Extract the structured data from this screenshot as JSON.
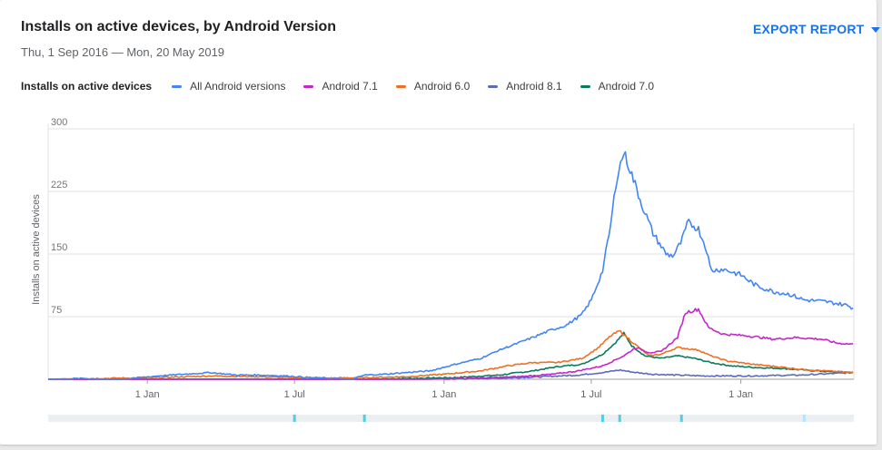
{
  "header": {
    "title": "Installs on active devices, by Android Version",
    "date_range": "Thu, 1 Sep 2016 — Mon, 20 May 2019",
    "export_label": "EXPORT REPORT"
  },
  "legend": {
    "title": "Installs on active devices"
  },
  "chart_data": {
    "type": "line",
    "ylabel": "Installs on active devices",
    "xlabel": "",
    "ylim": [
      0,
      300
    ],
    "y_ticks": [
      "300",
      "225",
      "150",
      "75"
    ],
    "y_tick_values": [
      300,
      225,
      150,
      75
    ],
    "x_ticks": [
      {
        "label": "1 Jan",
        "date": "2017-01-01"
      },
      {
        "label": "1 Jul",
        "date": "2017-07-01"
      },
      {
        "label": "1 Jan",
        "date": "2018-01-01"
      },
      {
        "label": "1 Jul",
        "date": "2018-07-01"
      },
      {
        "label": "1 Jan",
        "date": "2019-01-01"
      }
    ],
    "x_range": [
      "2016-09-01",
      "2019-05-20"
    ],
    "grid": true,
    "legend_position": "top",
    "series": [
      {
        "name": "All Android versions",
        "color": "#4285f4",
        "points": [
          [
            "2016-09-01",
            0
          ],
          [
            "2016-10-15",
            1
          ],
          [
            "2016-11-15",
            0
          ],
          [
            "2016-12-01",
            0
          ],
          [
            "2017-01-15",
            4
          ],
          [
            "2017-02-15",
            6
          ],
          [
            "2017-03-20",
            8
          ],
          [
            "2017-04-20",
            5
          ],
          [
            "2017-05-20",
            5
          ],
          [
            "2017-06-20",
            4
          ],
          [
            "2017-07-20",
            2
          ],
          [
            "2017-08-15",
            1
          ],
          [
            "2017-09-10",
            0
          ],
          [
            "2017-09-25",
            5
          ],
          [
            "2017-10-20",
            6
          ],
          [
            "2017-11-15",
            8
          ],
          [
            "2017-12-15",
            10
          ],
          [
            "2018-01-15",
            18
          ],
          [
            "2018-02-15",
            25
          ],
          [
            "2018-03-10",
            35
          ],
          [
            "2018-04-01",
            43
          ],
          [
            "2018-04-20",
            50
          ],
          [
            "2018-05-10",
            58
          ],
          [
            "2018-06-01",
            65
          ],
          [
            "2018-06-20",
            78
          ],
          [
            "2018-07-01",
            95
          ],
          [
            "2018-07-15",
            130
          ],
          [
            "2018-07-25",
            185
          ],
          [
            "2018-08-01",
            240
          ],
          [
            "2018-08-10",
            272
          ],
          [
            "2018-08-20",
            245
          ],
          [
            "2018-09-01",
            210
          ],
          [
            "2018-09-15",
            175
          ],
          [
            "2018-10-01",
            150
          ],
          [
            "2018-10-10",
            148
          ],
          [
            "2018-10-20",
            165
          ],
          [
            "2018-10-28",
            188
          ],
          [
            "2018-11-10",
            180
          ],
          [
            "2018-11-20",
            155
          ],
          [
            "2018-11-25",
            130
          ],
          [
            "2018-12-10",
            132
          ],
          [
            "2019-01-01",
            125
          ],
          [
            "2019-01-20",
            112
          ],
          [
            "2019-02-10",
            105
          ],
          [
            "2019-03-01",
            102
          ],
          [
            "2019-03-20",
            95
          ],
          [
            "2019-04-15",
            93
          ],
          [
            "2019-05-10",
            89
          ],
          [
            "2019-05-20",
            85
          ]
        ]
      },
      {
        "name": "Android 7.1",
        "color": "#c228c8",
        "points": [
          [
            "2016-09-01",
            0
          ],
          [
            "2017-12-01",
            0
          ],
          [
            "2018-02-01",
            1
          ],
          [
            "2018-04-01",
            3
          ],
          [
            "2018-05-15",
            6
          ],
          [
            "2018-06-15",
            10
          ],
          [
            "2018-07-15",
            16
          ],
          [
            "2018-08-10",
            28
          ],
          [
            "2018-08-25",
            38
          ],
          [
            "2018-09-10",
            32
          ],
          [
            "2018-09-25",
            33
          ],
          [
            "2018-10-15",
            50
          ],
          [
            "2018-10-25",
            80
          ],
          [
            "2018-11-10",
            84
          ],
          [
            "2018-11-22",
            62
          ],
          [
            "2018-12-10",
            54
          ],
          [
            "2019-01-10",
            52
          ],
          [
            "2019-02-10",
            48
          ],
          [
            "2019-03-10",
            50
          ],
          [
            "2019-04-10",
            48
          ],
          [
            "2019-05-01",
            43
          ],
          [
            "2019-05-20",
            42
          ]
        ]
      },
      {
        "name": "Android 6.0",
        "color": "#f26f21",
        "points": [
          [
            "2016-09-01",
            0
          ],
          [
            "2017-01-15",
            2
          ],
          [
            "2017-03-20",
            4
          ],
          [
            "2017-05-20",
            3
          ],
          [
            "2017-07-20",
            1
          ],
          [
            "2017-09-25",
            2
          ],
          [
            "2017-11-15",
            3
          ],
          [
            "2018-01-01",
            6
          ],
          [
            "2018-02-15",
            10
          ],
          [
            "2018-03-20",
            16
          ],
          [
            "2018-04-20",
            20
          ],
          [
            "2018-05-20",
            20
          ],
          [
            "2018-06-20",
            25
          ],
          [
            "2018-07-10",
            38
          ],
          [
            "2018-07-25",
            52
          ],
          [
            "2018-08-05",
            58
          ],
          [
            "2018-08-20",
            45
          ],
          [
            "2018-09-10",
            28
          ],
          [
            "2018-09-25",
            30
          ],
          [
            "2018-10-15",
            38
          ],
          [
            "2018-11-10",
            35
          ],
          [
            "2018-11-25",
            28
          ],
          [
            "2018-12-15",
            22
          ],
          [
            "2019-01-15",
            18
          ],
          [
            "2019-02-15",
            15
          ],
          [
            "2019-03-15",
            12
          ],
          [
            "2019-04-15",
            10
          ],
          [
            "2019-05-20",
            8
          ]
        ]
      },
      {
        "name": "Android 8.1",
        "color": "#5c6bc0",
        "points": [
          [
            "2016-09-01",
            0
          ],
          [
            "2017-12-01",
            0
          ],
          [
            "2018-03-01",
            1
          ],
          [
            "2018-05-01",
            3
          ],
          [
            "2018-06-15",
            5
          ],
          [
            "2018-07-15",
            8
          ],
          [
            "2018-08-05",
            11
          ],
          [
            "2018-08-25",
            8
          ],
          [
            "2018-09-15",
            6
          ],
          [
            "2018-10-15",
            5
          ],
          [
            "2018-11-15",
            4
          ],
          [
            "2019-01-15",
            4
          ],
          [
            "2019-03-15",
            5
          ],
          [
            "2019-05-20",
            8
          ]
        ]
      },
      {
        "name": "Android 7.0",
        "color": "#0b7a5d",
        "points": [
          [
            "2016-09-01",
            0
          ],
          [
            "2017-10-01",
            0
          ],
          [
            "2017-11-20",
            1
          ],
          [
            "2018-01-15",
            2
          ],
          [
            "2018-03-10",
            5
          ],
          [
            "2018-04-20",
            10
          ],
          [
            "2018-05-20",
            15
          ],
          [
            "2018-06-20",
            18
          ],
          [
            "2018-07-15",
            30
          ],
          [
            "2018-08-01",
            45
          ],
          [
            "2018-08-10",
            55
          ],
          [
            "2018-08-20",
            40
          ],
          [
            "2018-09-05",
            28
          ],
          [
            "2018-09-25",
            25
          ],
          [
            "2018-10-15",
            28
          ],
          [
            "2018-11-05",
            25
          ],
          [
            "2018-11-25",
            20
          ],
          [
            "2018-12-20",
            16
          ],
          [
            "2019-01-20",
            14
          ],
          [
            "2019-02-20",
            13
          ],
          [
            "2019-03-20",
            11
          ],
          [
            "2019-04-20",
            9
          ],
          [
            "2019-05-20",
            8
          ]
        ]
      }
    ],
    "brush_markers": [
      "2017-07-01",
      "2017-09-25",
      "2018-07-15",
      "2018-08-05",
      "2018-10-20",
      "2019-03-20"
    ]
  }
}
